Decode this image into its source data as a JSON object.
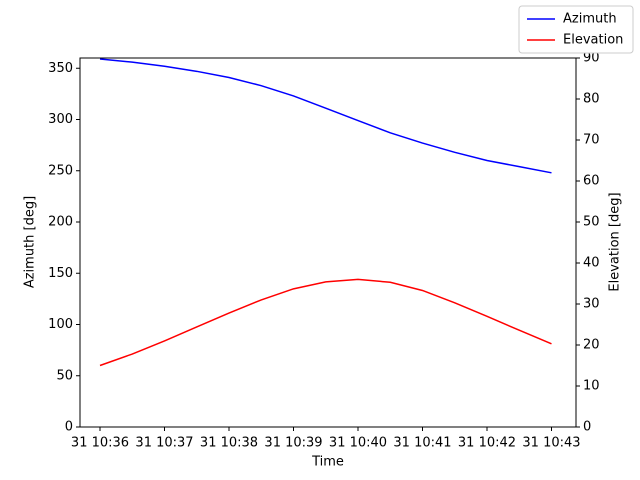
{
  "chart_data": {
    "type": "line",
    "x_label": "Time",
    "y_label": "Azimuth [deg]",
    "y2_label": "Elevation [deg]",
    "x": [
      36,
      36.5,
      37,
      37.5,
      38,
      38.5,
      39,
      39.5,
      40,
      40.5,
      41,
      41.5,
      42,
      42.5,
      43
    ],
    "xlim": [
      35.69,
      43.38
    ],
    "xticks": [
      {
        "value": 36,
        "label": "31 10:36"
      },
      {
        "value": 37,
        "label": "31 10:37"
      },
      {
        "value": 38,
        "label": "31 10:38"
      },
      {
        "value": 39,
        "label": "31 10:39"
      },
      {
        "value": 40,
        "label": "31 10:40"
      },
      {
        "value": 41,
        "label": "31 10:41"
      },
      {
        "value": 42,
        "label": "31 10:42"
      },
      {
        "value": 43,
        "label": "31 10:43"
      }
    ],
    "ylim": [
      0,
      360
    ],
    "yticks": [
      0,
      50,
      100,
      150,
      200,
      250,
      300,
      350
    ],
    "y2lim": [
      0,
      90
    ],
    "y2ticks": [
      0,
      10,
      20,
      30,
      40,
      50,
      60,
      70,
      80,
      90
    ],
    "legend": "upper right",
    "series": [
      {
        "name": "Azimuth",
        "color": "#0000ff",
        "values": [
          359,
          356,
          352,
          347,
          341,
          333,
          323,
          311,
          299,
          287,
          277,
          268,
          260,
          254,
          248
        ]
      },
      {
        "name": "Elevation",
        "color": "#ff0000",
        "axis": "y2",
        "values": [
          15,
          17.8,
          21,
          24.4,
          27.8,
          31,
          33.7,
          35.4,
          36,
          35.3,
          33.3,
          30.3,
          27,
          23.6,
          20.3
        ]
      }
    ]
  }
}
